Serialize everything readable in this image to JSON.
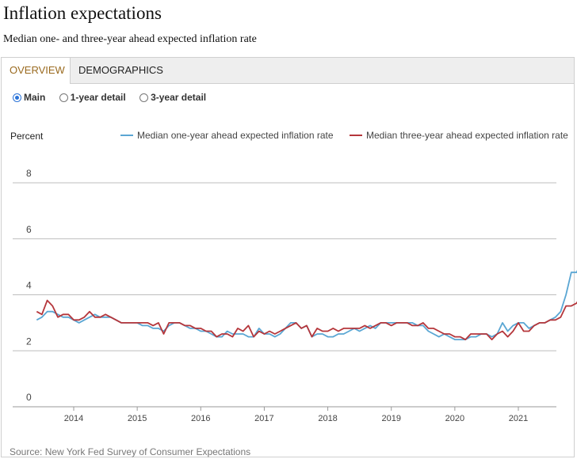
{
  "header": {
    "title": "Inflation expectations",
    "subtitle": "Median one- and three-year ahead expected inflation rate"
  },
  "tabs": [
    {
      "label": "OVERVIEW",
      "active": true
    },
    {
      "label": "DEMOGRAPHICS",
      "active": false
    }
  ],
  "view_options": [
    {
      "label": "Main",
      "selected": true
    },
    {
      "label": "1-year detail",
      "selected": false
    },
    {
      "label": "3-year detail",
      "selected": false
    }
  ],
  "source": "Source: New York Fed Survey of Consumer Expectations",
  "colors": {
    "one_year": "#5aa6d3",
    "three_year": "#b5363b",
    "grid": "#bdbdbd",
    "accent": "#9a6a1f"
  },
  "chart_data": {
    "type": "line",
    "title": "",
    "ylabel": "Percent",
    "xlabel": "",
    "ylim": [
      0,
      8
    ],
    "yticks": [
      0,
      2,
      4,
      6,
      8
    ],
    "xticks": [
      2014,
      2015,
      2016,
      2017,
      2018,
      2019,
      2020,
      2021
    ],
    "xlim": [
      "2013-06",
      "2021-09"
    ],
    "grid": true,
    "legend_position": "top-right",
    "series": [
      {
        "name": "Median one-year ahead expected inflation rate",
        "color": "#5aa6d3",
        "start": "2013-06",
        "frequency": "monthly",
        "values": [
          3.1,
          3.2,
          3.4,
          3.4,
          3.3,
          3.2,
          3.2,
          3.1,
          3.0,
          3.1,
          3.2,
          3.3,
          3.2,
          3.2,
          3.2,
          3.1,
          3.0,
          3.0,
          3.0,
          3.0,
          2.9,
          2.9,
          2.8,
          2.8,
          2.7,
          2.9,
          3.0,
          3.0,
          2.9,
          2.8,
          2.8,
          2.7,
          2.7,
          2.6,
          2.5,
          2.5,
          2.7,
          2.6,
          2.6,
          2.6,
          2.5,
          2.5,
          2.8,
          2.6,
          2.6,
          2.5,
          2.6,
          2.8,
          3.0,
          3.0,
          2.8,
          2.9,
          2.5,
          2.6,
          2.6,
          2.5,
          2.5,
          2.6,
          2.6,
          2.7,
          2.8,
          2.7,
          2.8,
          2.9,
          2.8,
          3.0,
          3.0,
          3.0,
          3.0,
          3.0,
          3.0,
          3.0,
          2.9,
          2.9,
          2.7,
          2.6,
          2.5,
          2.6,
          2.5,
          2.4,
          2.4,
          2.4,
          2.5,
          2.5,
          2.6,
          2.6,
          2.5,
          2.6,
          3.0,
          2.7,
          2.9,
          3.0,
          3.0,
          2.8,
          2.9,
          3.0,
          3.0,
          3.1,
          3.2,
          3.4,
          4.0,
          4.8,
          4.8,
          5.2
        ]
      },
      {
        "name": "Median three-year ahead expected inflation rate",
        "color": "#b5363b",
        "start": "2013-06",
        "frequency": "monthly",
        "values": [
          3.4,
          3.3,
          3.8,
          3.6,
          3.2,
          3.3,
          3.3,
          3.1,
          3.1,
          3.2,
          3.4,
          3.2,
          3.2,
          3.3,
          3.2,
          3.1,
          3.0,
          3.0,
          3.0,
          3.0,
          3.0,
          3.0,
          2.9,
          3.0,
          2.6,
          3.0,
          3.0,
          3.0,
          2.9,
          2.9,
          2.8,
          2.8,
          2.7,
          2.7,
          2.5,
          2.6,
          2.6,
          2.5,
          2.8,
          2.7,
          2.9,
          2.5,
          2.7,
          2.6,
          2.7,
          2.6,
          2.7,
          2.8,
          2.9,
          3.0,
          2.8,
          2.9,
          2.5,
          2.8,
          2.7,
          2.7,
          2.8,
          2.7,
          2.8,
          2.8,
          2.8,
          2.8,
          2.9,
          2.8,
          2.9,
          3.0,
          3.0,
          2.9,
          3.0,
          3.0,
          3.0,
          2.9,
          2.9,
          3.0,
          2.8,
          2.8,
          2.7,
          2.6,
          2.6,
          2.5,
          2.5,
          2.4,
          2.6,
          2.6,
          2.6,
          2.6,
          2.4,
          2.6,
          2.7,
          2.5,
          2.7,
          3.0,
          2.7,
          2.7,
          2.9,
          3.0,
          3.0,
          3.1,
          3.1,
          3.2,
          3.6,
          3.6,
          3.7,
          4.0
        ]
      }
    ]
  }
}
